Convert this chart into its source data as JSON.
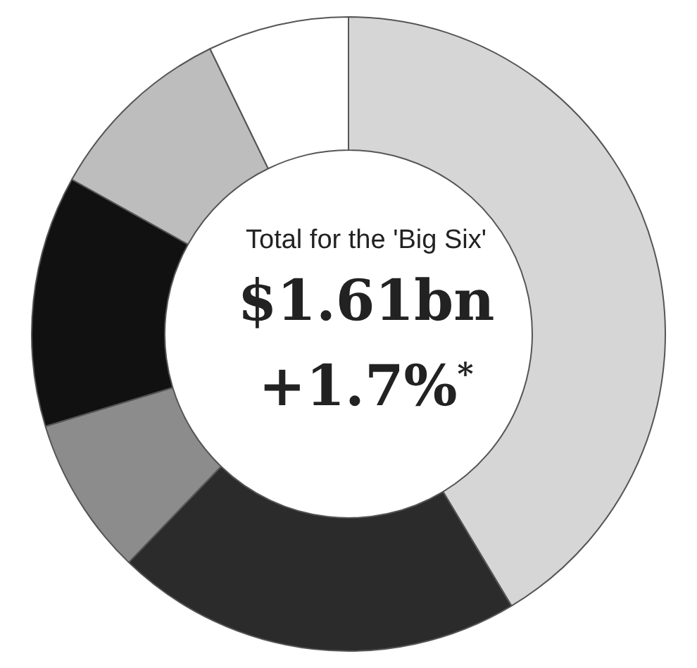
{
  "chart_data": {
    "type": "donut",
    "categories": [
      null,
      null,
      null,
      null,
      null,
      null
    ],
    "values": [
      41.4,
      20.8,
      8.1,
      12.8,
      9.7,
      7.2
    ],
    "colors": [
      "#d6d6d6",
      "#2b2b2b",
      "#8c8c8c",
      "#111111",
      "#bdbdbd",
      "#ffffff"
    ],
    "annotations": [
      "Total for the 'Big Six'",
      "$1.61bn",
      "+1.7%$^{*}$"
    ],
    "legend": false
  }
}
